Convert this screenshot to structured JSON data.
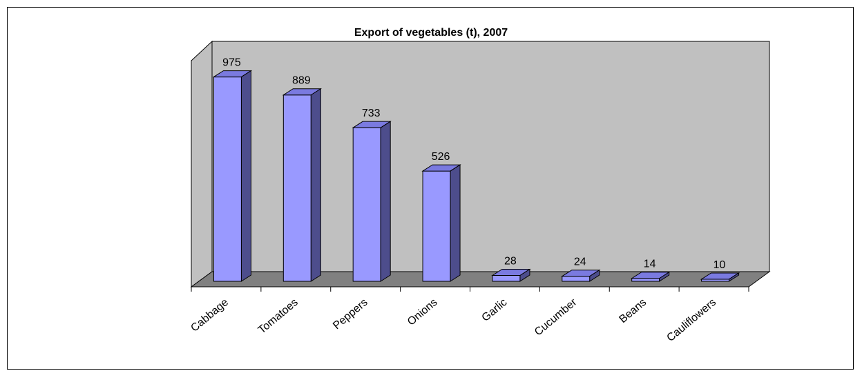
{
  "chart_data": {
    "type": "bar",
    "title": "Export of vegetables (t), 2007",
    "xlabel": "",
    "ylabel": "",
    "categories": [
      "Cabbage",
      "Tomatoes",
      "Peppers",
      "Onions",
      "Garlic",
      "Cucumber",
      "Beans",
      "Cauliflowers"
    ],
    "values": [
      975,
      889,
      733,
      526,
      28,
      24,
      14,
      10
    ],
    "ylim": [
      0,
      1000
    ],
    "grid": false,
    "legend": "none",
    "data_labels": true,
    "three_d": true,
    "colors": {
      "bar_front": "#9999ff",
      "bar_top": "#7a7ae0",
      "bar_side": "#4d4d8c",
      "back_wall": "#c0c0c0",
      "side_wall": "#c0c0c0",
      "floor": "#808080"
    }
  }
}
